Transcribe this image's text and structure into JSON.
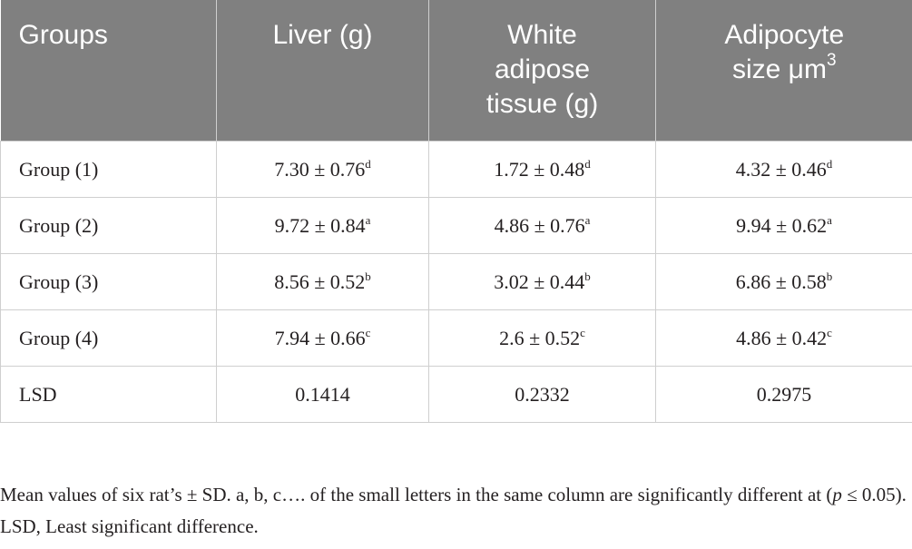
{
  "table": {
    "header": [
      {
        "text": "Groups"
      },
      {
        "text": "Liver (g)"
      },
      {
        "text": "White adipose tissue (g)"
      },
      {
        "text": "Adipocyte size μm",
        "sup": "3"
      }
    ],
    "rows": [
      {
        "label": "Group (1)",
        "cells": [
          {
            "text": "7.30 ± 0.76",
            "sup": "d"
          },
          {
            "text": "1.72 ± 0.48",
            "sup": "d"
          },
          {
            "text": "4.32 ± 0.46",
            "sup": "d"
          }
        ]
      },
      {
        "label": "Group (2)",
        "cells": [
          {
            "text": "9.72 ± 0.84",
            "sup": "a"
          },
          {
            "text": "4.86 ± 0.76",
            "sup": "a"
          },
          {
            "text": "9.94 ± 0.62",
            "sup": "a"
          }
        ]
      },
      {
        "label": "Group (3)",
        "cells": [
          {
            "text": "8.56 ± 0.52",
            "sup": "b"
          },
          {
            "text": "3.02 ± 0.44",
            "sup": "b"
          },
          {
            "text": "6.86 ± 0.58",
            "sup": "b"
          }
        ]
      },
      {
        "label": "Group (4)",
        "cells": [
          {
            "text": "7.94 ± 0.66",
            "sup": "c"
          },
          {
            "text": "2.6 ± 0.52",
            "sup": "c"
          },
          {
            "text": "4.86 ± 0.42",
            "sup": "c"
          }
        ]
      },
      {
        "label": "LSD",
        "cells": [
          {
            "text": "0.1414"
          },
          {
            "text": "0.2332"
          },
          {
            "text": "0.2975"
          }
        ]
      }
    ]
  },
  "footnote": [
    "Mean values of six rat’s ± SD. a, b, c…. of the small letters in the same column are significantly different at (",
    "p",
    " ≤ 0.05). LSD, Least significant difference."
  ]
}
